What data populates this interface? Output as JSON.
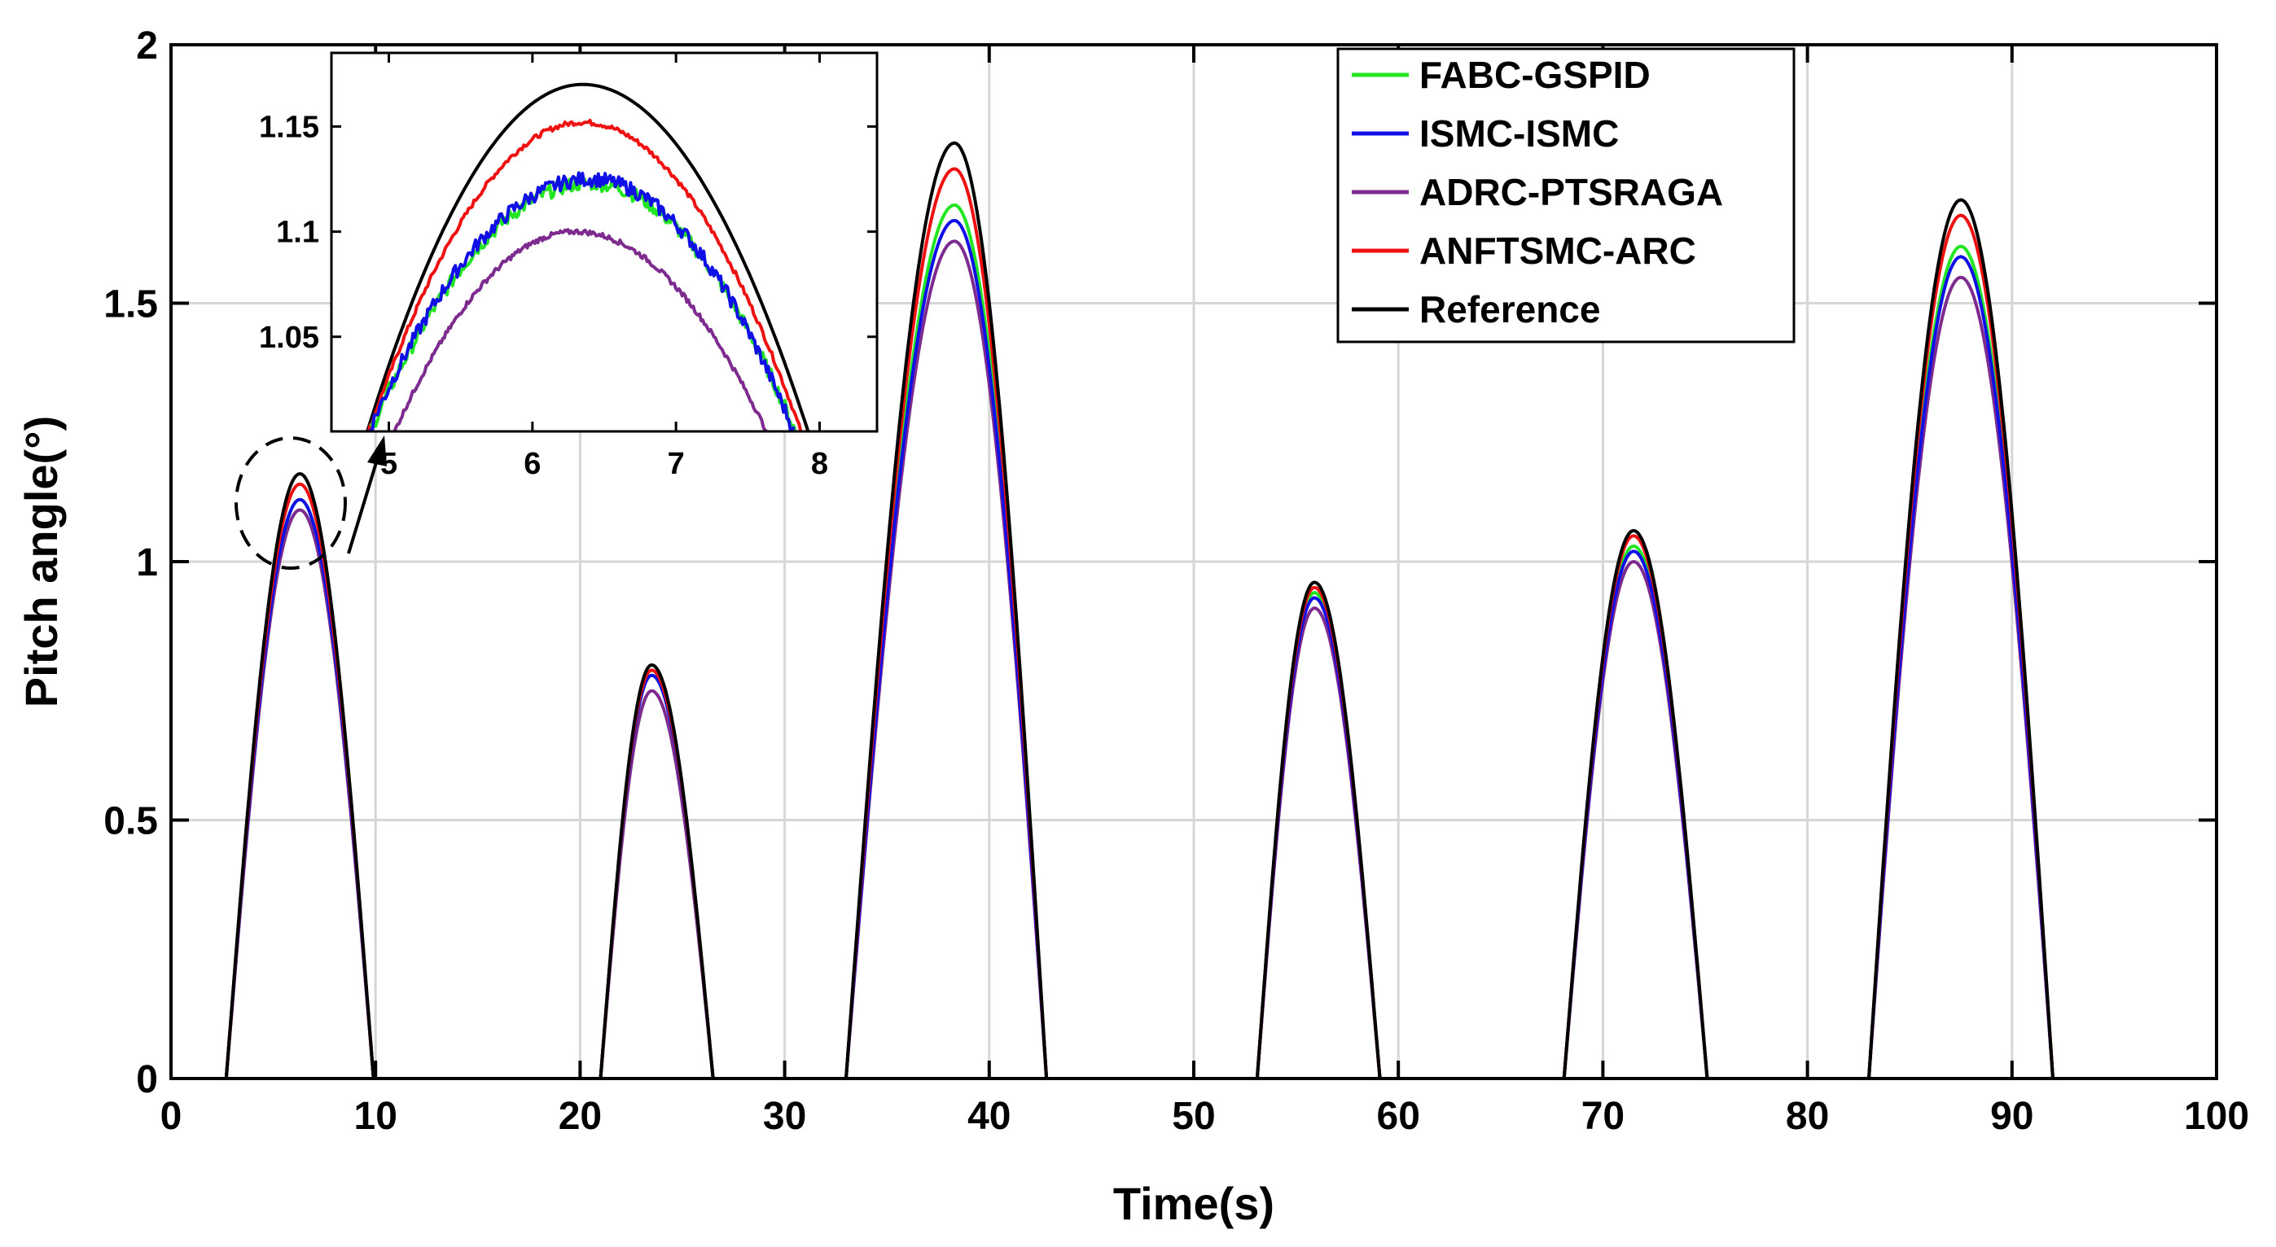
{
  "chart_data": [
    {
      "type": "line",
      "xlabel": "Time(s)",
      "ylabel": "Pitch angle(°)",
      "xlim": [
        0,
        100
      ],
      "ylim": [
        0,
        2
      ],
      "xticks": [
        0,
        10,
        20,
        30,
        40,
        50,
        60,
        70,
        80,
        90,
        100
      ],
      "yticks": [
        0,
        0.5,
        1,
        1.5,
        2
      ],
      "xtick_labels": [
        "0",
        "10",
        "20",
        "30",
        "40",
        "50",
        "60",
        "70",
        "80",
        "90",
        "100"
      ],
      "ytick_labels": [
        "0",
        "0.5",
        "1",
        "1.5",
        "2"
      ],
      "grid": true,
      "legend_position": "top-right",
      "pulses": [
        {
          "start": 2.7,
          "end": 9.9,
          "peak_time": 6.3,
          "peaks": {
            "FABC-GSPID": 1.12,
            "ISMC-ISMC": 1.12,
            "ADRC-PTSRAGA": 1.1,
            "ANFTSMC-ARC": 1.15,
            "Reference": 1.17
          }
        },
        {
          "start": 21.0,
          "end": 26.5,
          "peak_time": 23.5,
          "peaks": {
            "FABC-GSPID": 0.78,
            "ISMC-ISMC": 0.78,
            "ADRC-PTSRAGA": 0.75,
            "ANFTSMC-ARC": 0.79,
            "Reference": 0.8
          }
        },
        {
          "start": 33.0,
          "end": 42.8,
          "peak_time": 38.3,
          "peaks": {
            "FABC-GSPID": 1.69,
            "ISMC-ISMC": 1.66,
            "ADRC-PTSRAGA": 1.62,
            "ANFTSMC-ARC": 1.76,
            "Reference": 1.81
          }
        },
        {
          "start": 53.1,
          "end": 59.1,
          "peak_time": 55.9,
          "peaks": {
            "FABC-GSPID": 0.94,
            "ISMC-ISMC": 0.93,
            "ADRC-PTSRAGA": 0.91,
            "ANFTSMC-ARC": 0.95,
            "Reference": 0.96
          }
        },
        {
          "start": 68.1,
          "end": 75.1,
          "peak_time": 71.5,
          "peaks": {
            "FABC-GSPID": 1.03,
            "ISMC-ISMC": 1.02,
            "ADRC-PTSRAGA": 1.0,
            "ANFTSMC-ARC": 1.05,
            "Reference": 1.06
          }
        },
        {
          "start": 83.0,
          "end": 92.0,
          "peak_time": 87.5,
          "peaks": {
            "FABC-GSPID": 1.61,
            "ISMC-ISMC": 1.59,
            "ADRC-PTSRAGA": 1.55,
            "ANFTSMC-ARC": 1.67,
            "Reference": 1.7
          }
        }
      ],
      "series": [
        {
          "name": "FABC-GSPID",
          "color": "#22e622"
        },
        {
          "name": "ISMC-ISMC",
          "color": "#1010e6"
        },
        {
          "name": "ADRC-PTSRAGA",
          "color": "#7e2b8f"
        },
        {
          "name": "ANFTSMC-ARC",
          "color": "#ee1111"
        },
        {
          "name": "Reference",
          "color": "#000000"
        }
      ]
    },
    {
      "type": "line",
      "role": "inset-zoom",
      "xlim": [
        4.6,
        8.4
      ],
      "ylim": [
        1.005,
        1.185
      ],
      "xticks": [
        5,
        6,
        7,
        8
      ],
      "yticks": [
        1.05,
        1.1,
        1.15
      ],
      "xtick_labels": [
        "5",
        "6",
        "7",
        "8"
      ],
      "ytick_labels": [
        "1.05",
        "1.1",
        "1.15"
      ],
      "grid": false,
      "curves": [
        {
          "name": "Reference",
          "peak_time": 6.35,
          "peak": 1.17,
          "start": 4.85,
          "end": 7.92
        },
        {
          "name": "ANFTSMC-ARC",
          "peak_time": 6.35,
          "peak": 1.152,
          "start": 4.86,
          "end": 7.87
        },
        {
          "name": "FABC-GSPID",
          "peak_time": 6.4,
          "peak": 1.123,
          "start": 4.87,
          "end": 7.83
        },
        {
          "name": "ISMC-ISMC",
          "peak_time": 6.4,
          "peak": 1.125,
          "start": 4.86,
          "end": 7.82
        },
        {
          "name": "ADRC-PTSRAGA",
          "peak_time": 6.3,
          "peak": 1.1,
          "start": 5.04,
          "end": 7.63
        }
      ]
    }
  ]
}
